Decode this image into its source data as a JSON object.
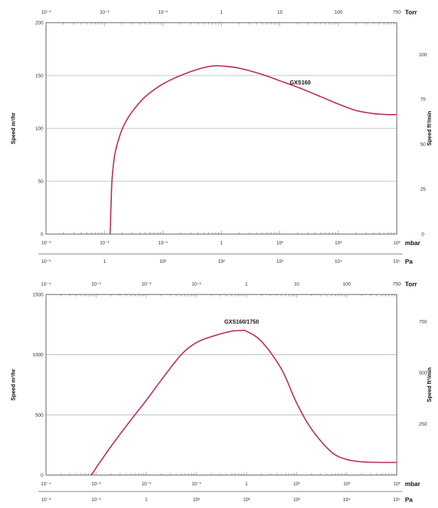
{
  "chart_data": [
    {
      "type": "line",
      "x_scale": "log",
      "x_unit": "mbar",
      "xlim": [
        0.001,
        1000
      ],
      "x_ticks": [
        "10⁻³",
        "10⁻²",
        "10⁻¹",
        "1",
        "10¹",
        "10²",
        "10³"
      ],
      "top_axis": {
        "unit": "Torr",
        "ticks": [
          "10⁻³",
          "10⁻²",
          "10⁻¹",
          "1",
          "10",
          "100",
          "750"
        ]
      },
      "bottom_axis2": {
        "unit": "Pa",
        "ticks": [
          "10⁻¹",
          "1",
          "10¹",
          "10²",
          "10³",
          "10⁴",
          "10⁵"
        ]
      },
      "ylabel": "Speed m³/hr",
      "ylim": [
        0,
        200
      ],
      "y_ticks": [
        0,
        50,
        100,
        150,
        200
      ],
      "ylabel_right": "Speed ft³/min",
      "y_right_ticks": [
        0,
        25,
        50,
        75,
        100
      ],
      "grid": true,
      "series": [
        {
          "name": "GXS160",
          "color": "#c0305a",
          "x": [
            0.0125,
            0.013,
            0.0135,
            0.015,
            0.018,
            0.022,
            0.03,
            0.05,
            0.1,
            0.2,
            0.4,
            0.7,
            1.0,
            2,
            5,
            10,
            20,
            50,
            100,
            200,
            400,
            700,
            1000
          ],
          "y": [
            0,
            30,
            52,
            75,
            92,
            104,
            116,
            130,
            142,
            150,
            156,
            159,
            159,
            157,
            151,
            145,
            139,
            130,
            123,
            117,
            114,
            113,
            113
          ]
        }
      ]
    },
    {
      "type": "line",
      "x_scale": "log",
      "x_unit": "mbar",
      "xlim": [
        0.0001,
        1000
      ],
      "x_ticks": [
        "10⁻⁴",
        "10⁻³",
        "10⁻²",
        "10⁻¹",
        "1",
        "10¹",
        "10²",
        "10³"
      ],
      "top_axis": {
        "unit": "Torr",
        "ticks": [
          "10⁻⁴",
          "10⁻³",
          "10⁻²",
          "10⁻¹",
          "1",
          "10",
          "100",
          "750"
        ]
      },
      "bottom_axis2": {
        "unit": "Pa",
        "ticks": [
          "10⁻²",
          "10⁻¹",
          "1",
          "10¹",
          "10²",
          "10³",
          "10⁴",
          "10⁵"
        ]
      },
      "ylabel": "Speed m³/hr",
      "ylim": [
        0,
        1500
      ],
      "y_ticks": [
        0,
        500,
        1000,
        1500
      ],
      "ylabel_right": "Speed ft³/min",
      "y_right_ticks": [
        250,
        500,
        750
      ],
      "grid": true,
      "series": [
        {
          "name": "GXS160/1750",
          "color": "#c0305a",
          "x": [
            0.0008,
            0.001,
            0.002,
            0.005,
            0.01,
            0.02,
            0.05,
            0.1,
            0.2,
            0.5,
            0.8,
            1.0,
            2,
            5,
            10,
            20,
            50,
            100,
            200,
            500,
            1000
          ],
          "y": [
            0,
            60,
            240,
            460,
            620,
            790,
            1000,
            1100,
            1150,
            1195,
            1200,
            1195,
            1110,
            880,
            600,
            380,
            190,
            130,
            110,
            105,
            105
          ]
        }
      ]
    }
  ]
}
